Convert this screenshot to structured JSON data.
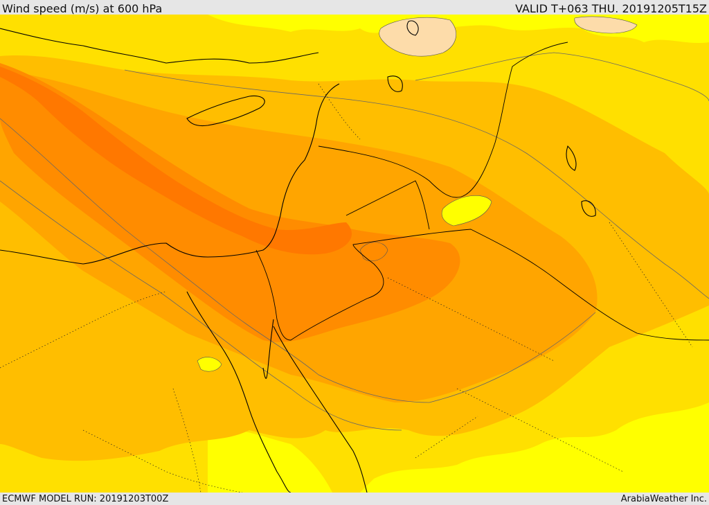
{
  "header": {
    "title": "Wind speed (m/s) at 600 hPa",
    "valid": "VALID T+063 THU. 20191205T15Z"
  },
  "footer": {
    "model_run": "ECMWF MODEL RUN: 20191203T00Z",
    "credit": "ArabiaWeather Inc."
  },
  "map": {
    "region": "Eastern Mediterranean / Levant / Arabia",
    "colors": {
      "band_lowest": "#ffff00",
      "band_low": "#ffe000",
      "band_mid": "#ffbe00",
      "band_high": "#ffa500",
      "band_higher": "#ff8c00",
      "band_max": "#ff7800",
      "calm_patch": "#fddcaa",
      "coast": "#000000",
      "contour": "#555555",
      "border_dotted": "#222222"
    }
  }
}
